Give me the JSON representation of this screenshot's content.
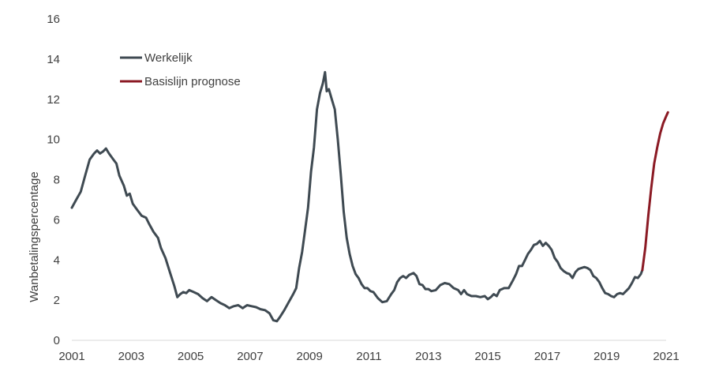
{
  "chart_data": {
    "type": "line",
    "ylabel": "Wanbetalingspercentage",
    "xlabel": "",
    "xlim": [
      2001,
      2021
    ],
    "ylim": [
      0,
      16
    ],
    "x_ticks": [
      "2001",
      "2003",
      "2005",
      "2007",
      "2009",
      "2011",
      "2013",
      "2015",
      "2017",
      "2019",
      "2021"
    ],
    "y_ticks": [
      "0",
      "2",
      "4",
      "6",
      "8",
      "10",
      "12",
      "14",
      "16"
    ],
    "legend_position": "top-left",
    "grid": false,
    "series": [
      {
        "name": "Werkelijk",
        "color": "#3f4a52",
        "points": [
          [
            2001.0,
            6.6
          ],
          [
            2001.15,
            7.0
          ],
          [
            2001.3,
            7.4
          ],
          [
            2001.45,
            8.2
          ],
          [
            2001.6,
            9.0
          ],
          [
            2001.75,
            9.3
          ],
          [
            2001.85,
            9.45
          ],
          [
            2001.95,
            9.3
          ],
          [
            2002.05,
            9.4
          ],
          [
            2002.15,
            9.55
          ],
          [
            2002.25,
            9.3
          ],
          [
            2002.4,
            9.0
          ],
          [
            2002.5,
            8.8
          ],
          [
            2002.6,
            8.2
          ],
          [
            2002.75,
            7.7
          ],
          [
            2002.85,
            7.2
          ],
          [
            2002.95,
            7.3
          ],
          [
            2003.05,
            6.8
          ],
          [
            2003.2,
            6.5
          ],
          [
            2003.35,
            6.2
          ],
          [
            2003.5,
            6.1
          ],
          [
            2003.6,
            5.8
          ],
          [
            2003.75,
            5.4
          ],
          [
            2003.9,
            5.1
          ],
          [
            2004.0,
            4.6
          ],
          [
            2004.15,
            4.1
          ],
          [
            2004.3,
            3.4
          ],
          [
            2004.45,
            2.7
          ],
          [
            2004.55,
            2.15
          ],
          [
            2004.65,
            2.3
          ],
          [
            2004.75,
            2.4
          ],
          [
            2004.85,
            2.35
          ],
          [
            2004.95,
            2.5
          ],
          [
            2005.1,
            2.4
          ],
          [
            2005.25,
            2.3
          ],
          [
            2005.4,
            2.1
          ],
          [
            2005.55,
            1.95
          ],
          [
            2005.7,
            2.15
          ],
          [
            2005.85,
            2.0
          ],
          [
            2006.0,
            1.85
          ],
          [
            2006.15,
            1.75
          ],
          [
            2006.3,
            1.6
          ],
          [
            2006.45,
            1.7
          ],
          [
            2006.6,
            1.75
          ],
          [
            2006.75,
            1.6
          ],
          [
            2006.9,
            1.75
          ],
          [
            2007.05,
            1.7
          ],
          [
            2007.2,
            1.65
          ],
          [
            2007.35,
            1.55
          ],
          [
            2007.5,
            1.5
          ],
          [
            2007.65,
            1.35
          ],
          [
            2007.78,
            1.0
          ],
          [
            2007.9,
            0.95
          ],
          [
            2008.0,
            1.15
          ],
          [
            2008.15,
            1.5
          ],
          [
            2008.3,
            1.9
          ],
          [
            2008.45,
            2.3
          ],
          [
            2008.55,
            2.6
          ],
          [
            2008.65,
            3.6
          ],
          [
            2008.75,
            4.4
          ],
          [
            2008.85,
            5.5
          ],
          [
            2008.95,
            6.6
          ],
          [
            2009.05,
            8.4
          ],
          [
            2009.15,
            9.6
          ],
          [
            2009.25,
            11.5
          ],
          [
            2009.35,
            12.3
          ],
          [
            2009.45,
            12.8
          ],
          [
            2009.52,
            13.35
          ],
          [
            2009.58,
            12.4
          ],
          [
            2009.65,
            12.5
          ],
          [
            2009.75,
            12.0
          ],
          [
            2009.85,
            11.5
          ],
          [
            2009.95,
            10.0
          ],
          [
            2010.05,
            8.3
          ],
          [
            2010.15,
            6.4
          ],
          [
            2010.25,
            5.1
          ],
          [
            2010.35,
            4.3
          ],
          [
            2010.45,
            3.7
          ],
          [
            2010.55,
            3.3
          ],
          [
            2010.65,
            3.1
          ],
          [
            2010.75,
            2.8
          ],
          [
            2010.85,
            2.6
          ],
          [
            2010.95,
            2.6
          ],
          [
            2011.05,
            2.45
          ],
          [
            2011.15,
            2.4
          ],
          [
            2011.3,
            2.1
          ],
          [
            2011.45,
            1.9
          ],
          [
            2011.6,
            1.95
          ],
          [
            2011.75,
            2.3
          ],
          [
            2011.85,
            2.5
          ],
          [
            2011.95,
            2.9
          ],
          [
            2012.05,
            3.1
          ],
          [
            2012.15,
            3.2
          ],
          [
            2012.25,
            3.1
          ],
          [
            2012.35,
            3.25
          ],
          [
            2012.5,
            3.35
          ],
          [
            2012.6,
            3.2
          ],
          [
            2012.7,
            2.8
          ],
          [
            2012.8,
            2.75
          ],
          [
            2012.9,
            2.55
          ],
          [
            2013.0,
            2.55
          ],
          [
            2013.1,
            2.45
          ],
          [
            2013.25,
            2.5
          ],
          [
            2013.4,
            2.75
          ],
          [
            2013.55,
            2.85
          ],
          [
            2013.7,
            2.8
          ],
          [
            2013.85,
            2.6
          ],
          [
            2014.0,
            2.5
          ],
          [
            2014.1,
            2.3
          ],
          [
            2014.2,
            2.5
          ],
          [
            2014.3,
            2.3
          ],
          [
            2014.45,
            2.2
          ],
          [
            2014.6,
            2.2
          ],
          [
            2014.75,
            2.15
          ],
          [
            2014.9,
            2.2
          ],
          [
            2015.0,
            2.05
          ],
          [
            2015.1,
            2.15
          ],
          [
            2015.2,
            2.3
          ],
          [
            2015.3,
            2.2
          ],
          [
            2015.4,
            2.5
          ],
          [
            2015.55,
            2.6
          ],
          [
            2015.7,
            2.6
          ],
          [
            2015.85,
            3.0
          ],
          [
            2015.95,
            3.3
          ],
          [
            2016.05,
            3.7
          ],
          [
            2016.15,
            3.7
          ],
          [
            2016.25,
            4.0
          ],
          [
            2016.35,
            4.3
          ],
          [
            2016.45,
            4.5
          ],
          [
            2016.55,
            4.75
          ],
          [
            2016.65,
            4.8
          ],
          [
            2016.75,
            4.95
          ],
          [
            2016.85,
            4.7
          ],
          [
            2016.95,
            4.85
          ],
          [
            2017.05,
            4.7
          ],
          [
            2017.15,
            4.5
          ],
          [
            2017.25,
            4.1
          ],
          [
            2017.35,
            3.9
          ],
          [
            2017.45,
            3.6
          ],
          [
            2017.55,
            3.45
          ],
          [
            2017.65,
            3.35
          ],
          [
            2017.75,
            3.3
          ],
          [
            2017.85,
            3.1
          ],
          [
            2017.95,
            3.4
          ],
          [
            2018.05,
            3.55
          ],
          [
            2018.15,
            3.6
          ],
          [
            2018.25,
            3.65
          ],
          [
            2018.35,
            3.6
          ],
          [
            2018.45,
            3.5
          ],
          [
            2018.55,
            3.2
          ],
          [
            2018.65,
            3.1
          ],
          [
            2018.75,
            2.9
          ],
          [
            2018.85,
            2.6
          ],
          [
            2018.95,
            2.35
          ],
          [
            2019.05,
            2.3
          ],
          [
            2019.15,
            2.2
          ],
          [
            2019.25,
            2.15
          ],
          [
            2019.35,
            2.3
          ],
          [
            2019.45,
            2.35
          ],
          [
            2019.55,
            2.3
          ],
          [
            2019.65,
            2.45
          ],
          [
            2019.75,
            2.6
          ],
          [
            2019.85,
            2.85
          ],
          [
            2019.95,
            3.15
          ],
          [
            2020.05,
            3.1
          ],
          [
            2020.15,
            3.3
          ],
          [
            2020.2,
            3.5
          ]
        ]
      },
      {
        "name": "Basislijn prognose",
        "color": "#8b1a24",
        "points": [
          [
            2020.2,
            3.5
          ],
          [
            2020.3,
            4.6
          ],
          [
            2020.4,
            6.2
          ],
          [
            2020.5,
            7.6
          ],
          [
            2020.6,
            8.8
          ],
          [
            2020.7,
            9.6
          ],
          [
            2020.8,
            10.3
          ],
          [
            2020.9,
            10.8
          ],
          [
            2021.0,
            11.15
          ],
          [
            2021.06,
            11.35
          ]
        ]
      }
    ]
  }
}
